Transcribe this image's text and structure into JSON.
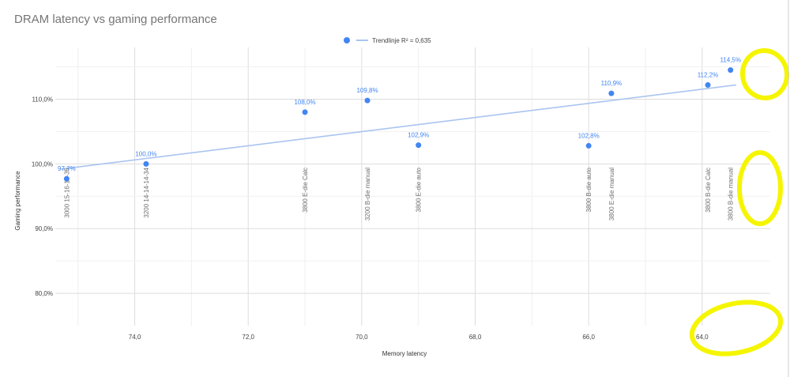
{
  "chart_data": {
    "type": "scatter",
    "title": "DRAM latency vs gaming performance",
    "xlabel": "Memory latency",
    "ylabel": "Gaming performance",
    "x_reversed": true,
    "xlim": [
      62.8,
      75.4
    ],
    "ylim": [
      75,
      118
    ],
    "x_ticks": [
      {
        "value": 74.0,
        "label": "74,0"
      },
      {
        "value": 72.0,
        "label": "72,0"
      },
      {
        "value": 70.0,
        "label": "70,0"
      },
      {
        "value": 68.0,
        "label": "68,0"
      },
      {
        "value": 66.0,
        "label": "66,0"
      },
      {
        "value": 64.0,
        "label": "64,0"
      }
    ],
    "y_ticks": [
      {
        "value": 80,
        "label": "80,0%"
      },
      {
        "value": 90,
        "label": "90,0%"
      },
      {
        "value": 100,
        "label": "100,0%"
      },
      {
        "value": 110,
        "label": "110,0%"
      }
    ],
    "grid": true,
    "legend_position": "top",
    "legend": {
      "label": "Trendlinje R² = 0,635"
    },
    "colors": {
      "points": "#4285f4",
      "trendline": "#aac4ef",
      "grid": "#e2e2e2",
      "highlight": "#f5f500"
    },
    "trendline": {
      "x": [
        75.3,
        63.4
      ],
      "y": [
        99.2,
        112.2
      ]
    },
    "points": [
      {
        "x": 75.2,
        "y": 97.7,
        "value_label": "97,7%",
        "name": "3000 15-16-16-35"
      },
      {
        "x": 73.8,
        "y": 100.0,
        "value_label": "100,0%",
        "name": "3200 14-14-14-34"
      },
      {
        "x": 71.0,
        "y": 108.0,
        "value_label": "108,0%",
        "name": "3800 E-die Calc"
      },
      {
        "x": 69.9,
        "y": 109.8,
        "value_label": "109,8%",
        "name": "3200 B-die manual"
      },
      {
        "x": 69.0,
        "y": 102.9,
        "value_label": "102,9%",
        "name": "3800 E-die auto"
      },
      {
        "x": 66.0,
        "y": 102.8,
        "value_label": "102,8%",
        "name": "3800 B-die auto"
      },
      {
        "x": 65.6,
        "y": 110.9,
        "value_label": "110,9%",
        "name": "3800 E-die manual"
      },
      {
        "x": 63.9,
        "y": 112.2,
        "value_label": "112,2%",
        "name": "3800 B-die Calc"
      },
      {
        "x": 63.5,
        "y": 114.5,
        "value_label": "114,5%",
        "name": "3800 B-die manual"
      }
    ]
  }
}
